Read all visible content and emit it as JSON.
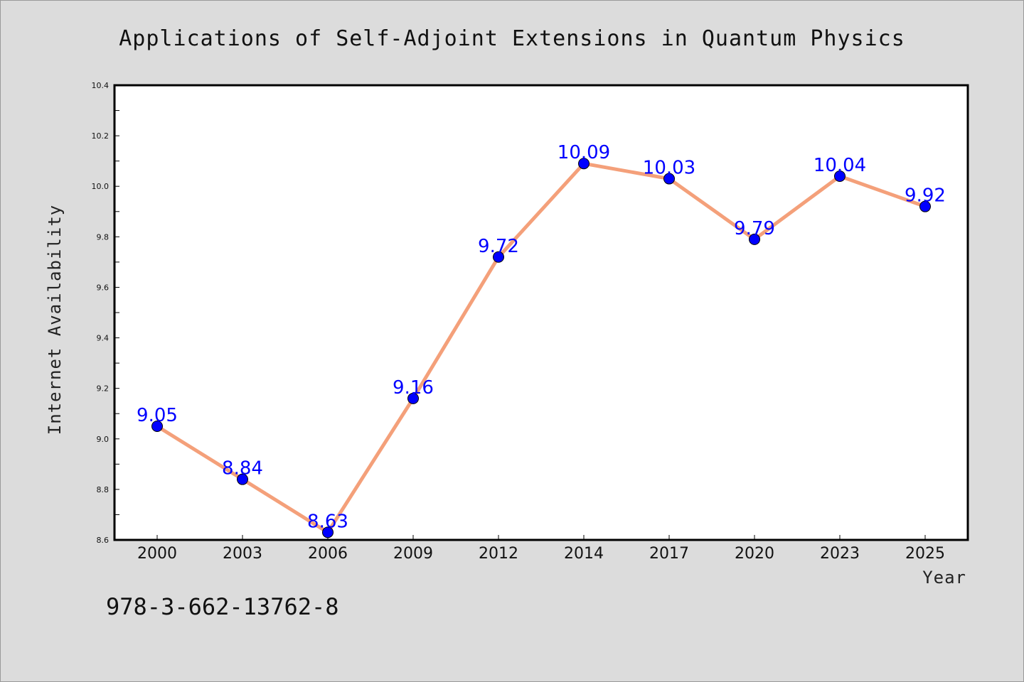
{
  "chart_data": {
    "type": "line",
    "title": "Applications of Self-Adjoint Extensions in Quantum Physics",
    "xlabel": "Year",
    "ylabel": "Internet Availability",
    "categories": [
      "2000",
      "2003",
      "2006",
      "2009",
      "2012",
      "2014",
      "2017",
      "2020",
      "2023",
      "2025"
    ],
    "series": [
      {
        "values": [
          9.05,
          8.84,
          8.63,
          9.16,
          9.72,
          10.09,
          10.03,
          9.79,
          10.04,
          9.92
        ],
        "line_color": "#f4a07a",
        "marker_color": "#0000ff"
      }
    ],
    "data_labels": [
      "9.05",
      "8.84",
      "8.63",
      "9.16",
      "9.72",
      "10.09",
      "10.03",
      "9.79",
      "10.04",
      "9.92"
    ],
    "ylim": [
      8.6,
      10.4
    ],
    "yticks": [
      "8.6",
      "8.8",
      "9.0",
      "9.2",
      "9.4",
      "9.6",
      "9.8",
      "10.0",
      "10.2",
      "10.4"
    ],
    "grid": false,
    "legend": "none"
  },
  "footer": {
    "isbn": "978-3-662-13762-8"
  }
}
